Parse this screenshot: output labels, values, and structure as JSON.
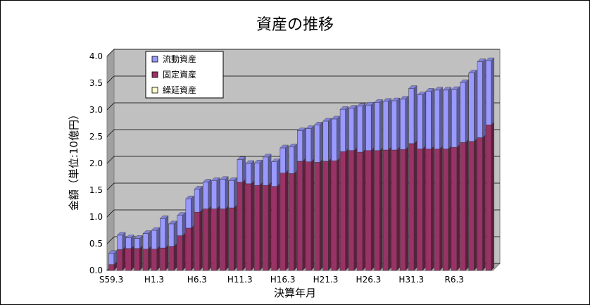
{
  "chart_data": {
    "type": "bar",
    "stacked": true,
    "title": "資産の推移",
    "xlabel": "決算年月",
    "ylabel": "金額（単位:10億円）",
    "ylim": [
      0,
      4.0
    ],
    "yticks": [
      "0.0",
      "0.5",
      "1.0",
      "1.5",
      "2.0",
      "2.5",
      "3.0",
      "3.5",
      "4.0"
    ],
    "x_tick_labels": [
      "S59.3",
      "H1.3",
      "H6.3",
      "H11.3",
      "H16.3",
      "H21.3",
      "H26.3",
      "H31.3",
      "R6.3"
    ],
    "x_tick_every": 5,
    "grid": true,
    "legend_position": "top-left",
    "series": [
      {
        "name": "流動資産",
        "color": "#9999FF",
        "values": [
          0.21,
          0.27,
          0.2,
          0.19,
          0.29,
          0.35,
          0.55,
          0.42,
          0.38,
          0.55,
          0.43,
          0.5,
          0.53,
          0.55,
          0.51,
          0.42,
          0.38,
          0.42,
          0.53,
          0.46,
          0.47,
          0.5,
          0.57,
          0.62,
          0.7,
          0.75,
          0.78,
          0.79,
          0.79,
          0.86,
          0.85,
          0.9,
          0.91,
          0.92,
          0.94,
          1.03,
          1.01,
          1.08,
          1.1,
          1.1,
          1.08,
          1.12,
          1.28,
          1.42,
          1.2
        ]
      },
      {
        "name": "固定資産",
        "color": "#993366",
        "values": [
          0.11,
          0.39,
          0.41,
          0.41,
          0.4,
          0.4,
          0.42,
          0.45,
          0.65,
          0.79,
          1.09,
          1.15,
          1.15,
          1.15,
          1.17,
          1.65,
          1.62,
          1.59,
          1.59,
          1.57,
          1.82,
          1.81,
          2.04,
          2.03,
          2.02,
          2.04,
          2.05,
          2.22,
          2.24,
          2.21,
          2.24,
          2.24,
          2.25,
          2.25,
          2.26,
          2.37,
          2.27,
          2.27,
          2.27,
          2.27,
          2.3,
          2.39,
          2.41,
          2.48,
          2.72
        ]
      },
      {
        "name": "繰延資産",
        "color": "#FFFFCC",
        "values": [
          0,
          0,
          0,
          0,
          0,
          0,
          0,
          0,
          0,
          0,
          0,
          0,
          0,
          0,
          0,
          0,
          0,
          0,
          0,
          0,
          0,
          0,
          0,
          0,
          0,
          0,
          0,
          0,
          0,
          0,
          0,
          0,
          0,
          0,
          0,
          0,
          0,
          0,
          0,
          0,
          0,
          0,
          0,
          0,
          0
        ]
      }
    ]
  }
}
